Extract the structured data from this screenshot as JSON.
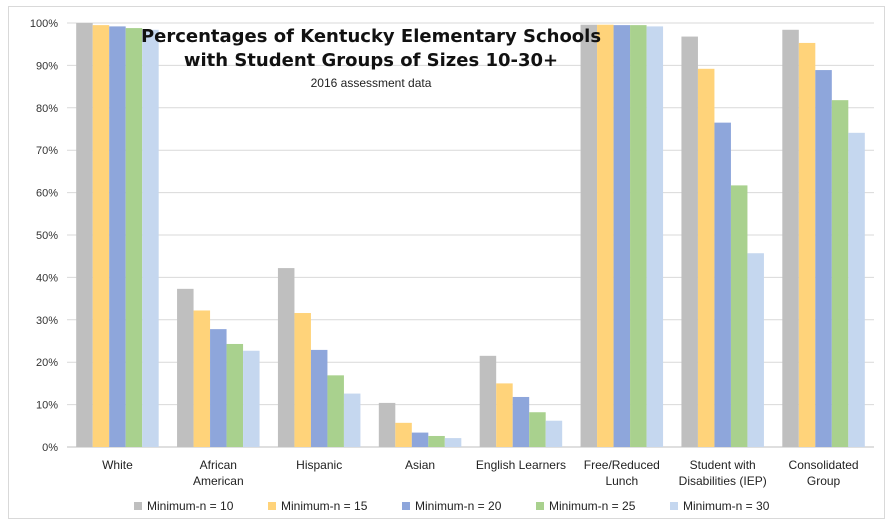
{
  "chart_data": {
    "type": "bar",
    "title_line1": "Percentages of Kentucky Elementary Schools",
    "title_line2": "with Student Groups of Sizes 10-30+",
    "subtitle": "2016 assessment data",
    "categories": [
      [
        "White"
      ],
      [
        "African",
        "American"
      ],
      [
        "Hispanic"
      ],
      [
        "Asian"
      ],
      [
        "English Learners"
      ],
      [
        "Free/Reduced",
        "Lunch"
      ],
      [
        "Student with",
        "Disabilities (IEP)"
      ],
      [
        "Consolidated",
        "Group"
      ]
    ],
    "y_ticks": [
      "0%",
      "10%",
      "20%",
      "30%",
      "40%",
      "50%",
      "60%",
      "70%",
      "80%",
      "90%",
      "100%"
    ],
    "ylim": [
      0,
      100
    ],
    "grid": true,
    "legend_position": "bottom",
    "series": [
      {
        "name": "Minimum-n = 10",
        "color": "#bfbfbf",
        "values": [
          100,
          37.3,
          42.2,
          10.4,
          21.5,
          99.6,
          96.8,
          98.4
        ]
      },
      {
        "name": "Minimum-n = 15",
        "color": "#ffd37a",
        "values": [
          99.5,
          32.2,
          31.6,
          5.7,
          15.0,
          99.6,
          89.2,
          95.3
        ]
      },
      {
        "name": "Minimum-n = 20",
        "color": "#8ea6db",
        "values": [
          99.2,
          27.8,
          22.9,
          3.4,
          11.8,
          99.5,
          76.5,
          88.9
        ]
      },
      {
        "name": "Minimum-n = 25",
        "color": "#a9d18e",
        "values": [
          98.8,
          24.3,
          16.9,
          2.6,
          8.2,
          99.5,
          61.7,
          81.8
        ]
      },
      {
        "name": "Minimum-n = 30",
        "color": "#c5d7ef",
        "values": [
          98.4,
          22.7,
          12.6,
          2.1,
          6.2,
          99.2,
          45.7,
          74.1
        ]
      }
    ]
  }
}
